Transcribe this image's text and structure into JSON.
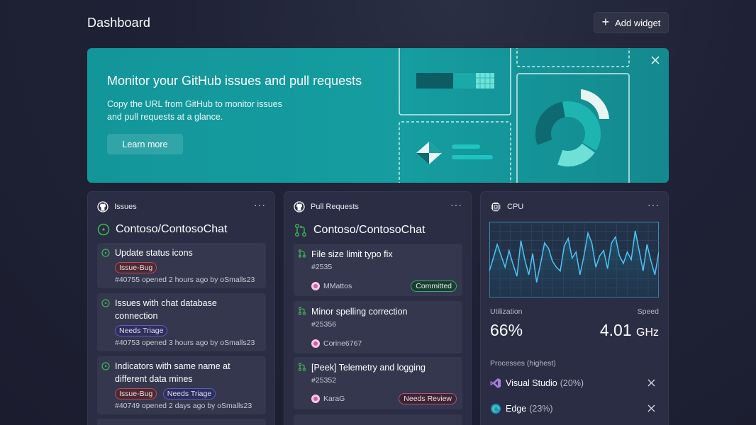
{
  "page": {
    "title": "Dashboard",
    "add_widget_label": "Add widget"
  },
  "banner": {
    "title": "Monitor your GitHub issues and pull requests",
    "description": "Copy the URL from GitHub to monitor issues and pull requests at a glance.",
    "button_label": "Learn more"
  },
  "issues": {
    "header": "Issues",
    "repo": "Contoso/ContosoChat",
    "items": [
      {
        "title": "Update status icons",
        "tags": [
          "Issue-Bug"
        ],
        "meta": "#40755 opened 2 hours ago by oSmalls23"
      },
      {
        "title": "Issues with chat database connection",
        "tags": [
          "Needs Triage"
        ],
        "meta": "#40753 opened 3 hours ago by oSmalls23"
      },
      {
        "title": "Indicators with same name at different data mines",
        "tags": [
          "Issue-Bug",
          "Needs Triage"
        ],
        "meta": "#40749 opened 2 days ago by oSmalls23"
      }
    ]
  },
  "pull_requests": {
    "header": "Pull Requests",
    "repo": "Contoso/ContosoChat",
    "items": [
      {
        "title": "File size limit typo fix",
        "number": "#2535",
        "author": "MMattos",
        "badge": "Committed"
      },
      {
        "title": "Minor spelling correction",
        "number": "#25356",
        "author": "Corine6767",
        "badge": ""
      },
      {
        "title": "[Peek] Telemetry and logging",
        "number": "#25352",
        "author": "KaraG",
        "badge": "Needs Review"
      }
    ]
  },
  "cpu": {
    "header": "CPU",
    "utilization_label": "Utilization",
    "utilization_value": "66%",
    "speed_label": "Speed",
    "speed_value": "4.01",
    "speed_unit": "GHz",
    "processes_label": "Processes (highest)",
    "processes": [
      {
        "name": "Visual Studio",
        "pct": "(20%)"
      },
      {
        "name": "Edge",
        "pct": "(23%)"
      }
    ],
    "history": [
      35,
      52,
      70,
      55,
      40,
      62,
      44,
      28,
      75,
      50,
      30,
      58,
      20,
      45,
      72,
      65,
      48,
      40,
      35,
      68,
      78,
      52,
      60,
      30,
      55,
      85,
      72,
      40,
      55,
      62,
      38,
      72,
      80,
      55,
      45,
      60,
      50,
      88,
      62,
      35,
      70,
      48,
      30,
      60
    ]
  },
  "colors": {
    "banner_bg": "#159da0",
    "card_bg": "#2b2d44",
    "chart_line": "#4fc3f7",
    "issue_open": "#3fb950"
  }
}
